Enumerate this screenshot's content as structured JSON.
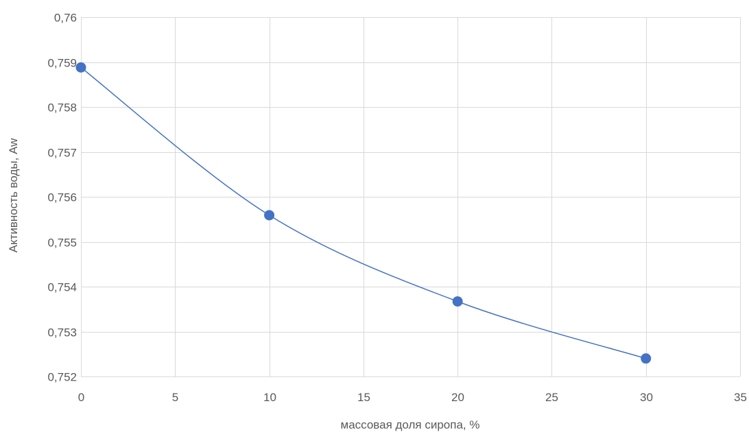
{
  "chart_data": {
    "type": "scatter",
    "title": "",
    "xlabel": "массовая доля сиропа, %",
    "ylabel": "Активность воды, Aw",
    "xlim": [
      0,
      35
    ],
    "ylim": [
      0.752,
      0.76
    ],
    "x_ticks": [
      "0",
      "5",
      "10",
      "15",
      "20",
      "25",
      "30",
      "35"
    ],
    "y_ticks": [
      "0,752",
      "0,753",
      "0,754",
      "0,755",
      "0,756",
      "0,757",
      "0,758",
      "0,759",
      "0,76"
    ],
    "grid": true,
    "smooth_line": true,
    "series": [
      {
        "x": [
          0,
          10,
          20,
          30
        ],
        "y": [
          0.75888,
          0.75559,
          0.75367,
          0.7524
        ],
        "color": "#4472c4"
      }
    ]
  }
}
